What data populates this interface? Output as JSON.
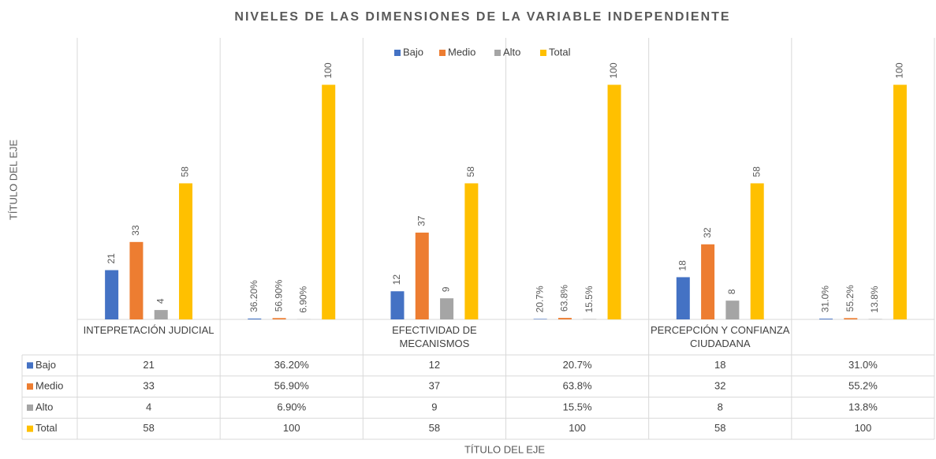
{
  "chart_data": {
    "type": "bar",
    "title": "NIVELES DE LAS DIMENSIONES DE LA VARIABLE INDEPENDIENTE",
    "x_label": "TÍTULO DEL EJE",
    "y_label": "TÍTULO DEL EJE",
    "categories": [
      "INTEPRETACIÓN JUDICIAL",
      null,
      "EFECTIVIDAD DE MECANISMOS",
      null,
      "PERCEPCIÓN Y CONFIANZA CIUDADANA",
      null
    ],
    "series": [
      {
        "name": "Bajo",
        "color": "#4472c4",
        "values": [
          21,
          0.362,
          12,
          0.207,
          18,
          0.31
        ],
        "value_labels": [
          "21",
          "36.20%",
          "12",
          "20.7%",
          "18",
          "31.0%"
        ]
      },
      {
        "name": "Medio",
        "color": "#ed7d31",
        "values": [
          33,
          0.569,
          37,
          0.638,
          32,
          0.552
        ],
        "value_labels": [
          "33",
          "56.90%",
          "37",
          "63.8%",
          "32",
          "55.2%"
        ]
      },
      {
        "name": "Alto",
        "color": "#a5a5a5",
        "values": [
          4,
          0.069,
          9,
          0.155,
          8,
          0.138
        ],
        "value_labels": [
          "4",
          "6.90%",
          "9",
          "15.5%",
          "8",
          "13.8%"
        ]
      },
      {
        "name": "Total",
        "color": "#ffc000",
        "values": [
          58,
          100,
          58,
          100,
          58,
          100
        ],
        "value_labels": [
          "58",
          "100",
          "58",
          "100",
          "58",
          "100"
        ]
      }
    ],
    "ylim": [
      0,
      120
    ],
    "legend": "top",
    "data_table": true
  }
}
